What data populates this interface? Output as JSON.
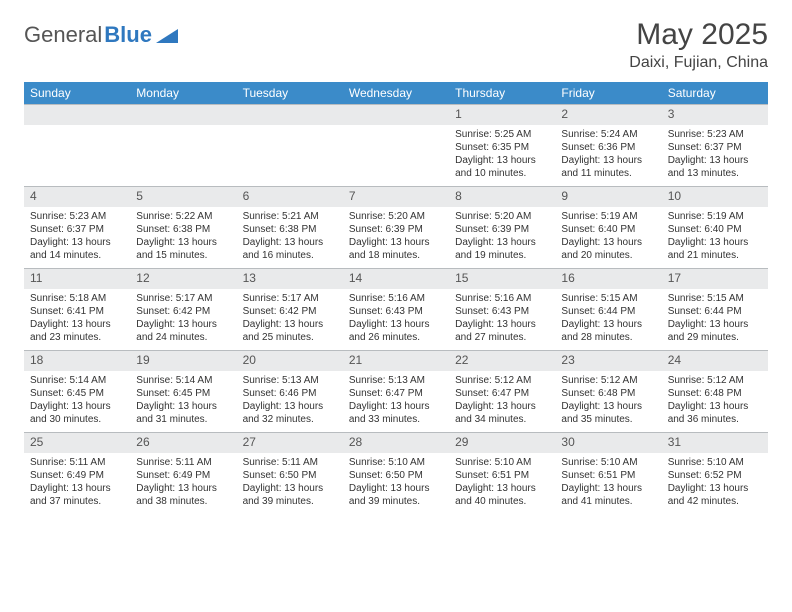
{
  "brand": {
    "part1": "General",
    "part2": "Blue"
  },
  "title": {
    "month_year": "May 2025",
    "location": "Daixi, Fujian, China"
  },
  "colors": {
    "header_bg": "#3b8bc9",
    "header_text": "#ffffff",
    "daynum_bg": "#e9eaeb",
    "daynum_border": "#b8bcbf",
    "body_text": "#333333",
    "logo_gray": "#6a6a6a",
    "logo_blue": "#2f78bf"
  },
  "weekdays": [
    "Sunday",
    "Monday",
    "Tuesday",
    "Wednesday",
    "Thursday",
    "Friday",
    "Saturday"
  ],
  "weeks": [
    [
      null,
      null,
      null,
      null,
      {
        "n": "1",
        "sr": "5:25 AM",
        "ss": "6:35 PM",
        "dl": "13 hours and 10 minutes."
      },
      {
        "n": "2",
        "sr": "5:24 AM",
        "ss": "6:36 PM",
        "dl": "13 hours and 11 minutes."
      },
      {
        "n": "3",
        "sr": "5:23 AM",
        "ss": "6:37 PM",
        "dl": "13 hours and 13 minutes."
      }
    ],
    [
      {
        "n": "4",
        "sr": "5:23 AM",
        "ss": "6:37 PM",
        "dl": "13 hours and 14 minutes."
      },
      {
        "n": "5",
        "sr": "5:22 AM",
        "ss": "6:38 PM",
        "dl": "13 hours and 15 minutes."
      },
      {
        "n": "6",
        "sr": "5:21 AM",
        "ss": "6:38 PM",
        "dl": "13 hours and 16 minutes."
      },
      {
        "n": "7",
        "sr": "5:20 AM",
        "ss": "6:39 PM",
        "dl": "13 hours and 18 minutes."
      },
      {
        "n": "8",
        "sr": "5:20 AM",
        "ss": "6:39 PM",
        "dl": "13 hours and 19 minutes."
      },
      {
        "n": "9",
        "sr": "5:19 AM",
        "ss": "6:40 PM",
        "dl": "13 hours and 20 minutes."
      },
      {
        "n": "10",
        "sr": "5:19 AM",
        "ss": "6:40 PM",
        "dl": "13 hours and 21 minutes."
      }
    ],
    [
      {
        "n": "11",
        "sr": "5:18 AM",
        "ss": "6:41 PM",
        "dl": "13 hours and 23 minutes."
      },
      {
        "n": "12",
        "sr": "5:17 AM",
        "ss": "6:42 PM",
        "dl": "13 hours and 24 minutes."
      },
      {
        "n": "13",
        "sr": "5:17 AM",
        "ss": "6:42 PM",
        "dl": "13 hours and 25 minutes."
      },
      {
        "n": "14",
        "sr": "5:16 AM",
        "ss": "6:43 PM",
        "dl": "13 hours and 26 minutes."
      },
      {
        "n": "15",
        "sr": "5:16 AM",
        "ss": "6:43 PM",
        "dl": "13 hours and 27 minutes."
      },
      {
        "n": "16",
        "sr": "5:15 AM",
        "ss": "6:44 PM",
        "dl": "13 hours and 28 minutes."
      },
      {
        "n": "17",
        "sr": "5:15 AM",
        "ss": "6:44 PM",
        "dl": "13 hours and 29 minutes."
      }
    ],
    [
      {
        "n": "18",
        "sr": "5:14 AM",
        "ss": "6:45 PM",
        "dl": "13 hours and 30 minutes."
      },
      {
        "n": "19",
        "sr": "5:14 AM",
        "ss": "6:45 PM",
        "dl": "13 hours and 31 minutes."
      },
      {
        "n": "20",
        "sr": "5:13 AM",
        "ss": "6:46 PM",
        "dl": "13 hours and 32 minutes."
      },
      {
        "n": "21",
        "sr": "5:13 AM",
        "ss": "6:47 PM",
        "dl": "13 hours and 33 minutes."
      },
      {
        "n": "22",
        "sr": "5:12 AM",
        "ss": "6:47 PM",
        "dl": "13 hours and 34 minutes."
      },
      {
        "n": "23",
        "sr": "5:12 AM",
        "ss": "6:48 PM",
        "dl": "13 hours and 35 minutes."
      },
      {
        "n": "24",
        "sr": "5:12 AM",
        "ss": "6:48 PM",
        "dl": "13 hours and 36 minutes."
      }
    ],
    [
      {
        "n": "25",
        "sr": "5:11 AM",
        "ss": "6:49 PM",
        "dl": "13 hours and 37 minutes."
      },
      {
        "n": "26",
        "sr": "5:11 AM",
        "ss": "6:49 PM",
        "dl": "13 hours and 38 minutes."
      },
      {
        "n": "27",
        "sr": "5:11 AM",
        "ss": "6:50 PM",
        "dl": "13 hours and 39 minutes."
      },
      {
        "n": "28",
        "sr": "5:10 AM",
        "ss": "6:50 PM",
        "dl": "13 hours and 39 minutes."
      },
      {
        "n": "29",
        "sr": "5:10 AM",
        "ss": "6:51 PM",
        "dl": "13 hours and 40 minutes."
      },
      {
        "n": "30",
        "sr": "5:10 AM",
        "ss": "6:51 PM",
        "dl": "13 hours and 41 minutes."
      },
      {
        "n": "31",
        "sr": "5:10 AM",
        "ss": "6:52 PM",
        "dl": "13 hours and 42 minutes."
      }
    ]
  ],
  "labels": {
    "sunrise": "Sunrise:",
    "sunset": "Sunset:",
    "daylight": "Daylight:"
  }
}
